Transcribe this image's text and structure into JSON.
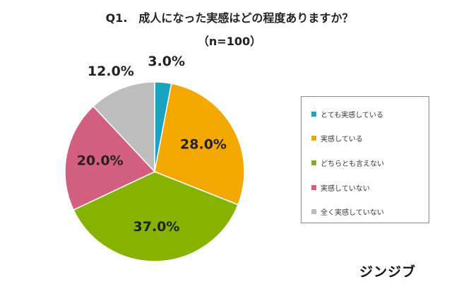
{
  "chart_data": {
    "type": "pie",
    "title": "Q1.　成人になった実感はどの程度ありますか？",
    "subtitle": "（n=100）",
    "categories": [
      "とても実感している",
      "実感している",
      "どちらとも言えない",
      "実感していない",
      "全く実感していない"
    ],
    "values": [
      3.0,
      28.0,
      37.0,
      20.0,
      12.0
    ],
    "value_labels": [
      "3.0%",
      "28.0%",
      "37.0%",
      "20.0%",
      "12.0%"
    ],
    "colors": [
      "#1aa3c1",
      "#f3a800",
      "#86b300",
      "#d35f80",
      "#bdbdbd"
    ],
    "start": "12 o'clock",
    "direction": "clockwise",
    "legend_position": "right"
  },
  "brand": {
    "logo_text": "ジンジブ"
  }
}
